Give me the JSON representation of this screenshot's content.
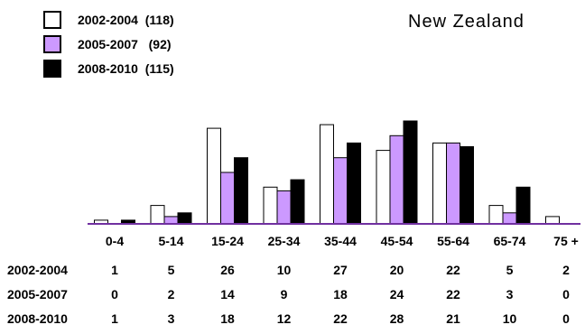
{
  "chart_data": {
    "type": "bar",
    "title": "New Zealand",
    "categories": [
      "0-4",
      "5-14",
      "15-24",
      "25-34",
      "35-44",
      "45-54",
      "55-64",
      "65-74",
      "75 +"
    ],
    "series": [
      {
        "name": "2002-2004",
        "legend_label": "2002-2004  (118)",
        "values": [
          1,
          5,
          26,
          10,
          27,
          20,
          22,
          5,
          2
        ],
        "color": "#ffffff"
      },
      {
        "name": "2005-2007",
        "legend_label": "2005-2007   (92)",
        "values": [
          0,
          2,
          14,
          9,
          18,
          24,
          22,
          3,
          0
        ],
        "color": "#cc99ff"
      },
      {
        "name": "2008-2010",
        "legend_label": "2008-2010  (115)",
        "values": [
          1,
          3,
          18,
          12,
          22,
          28,
          21,
          10,
          0
        ],
        "color": "#000000"
      }
    ],
    "axis_color": "#7030a0",
    "ylim": [
      0,
      28
    ],
    "legend_position": "top-left",
    "grid": false
  }
}
